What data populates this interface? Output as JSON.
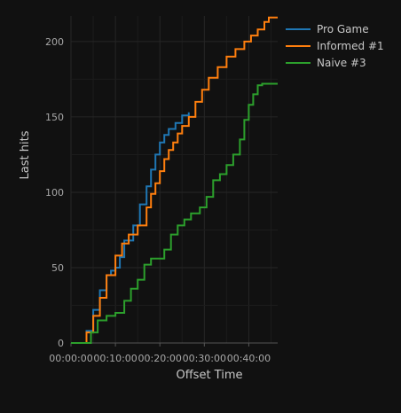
{
  "chart_data": {
    "type": "line",
    "xlabel": "Offset Time",
    "ylabel": "Last hits",
    "x_unit": "minutes",
    "xlim": [
      0,
      46.5
    ],
    "ylim": [
      0,
      217
    ],
    "x_ticks": [
      {
        "value": 0,
        "label": "00:00:00"
      },
      {
        "value": 10,
        "label": "00:10:00"
      },
      {
        "value": 20,
        "label": "00:20:00"
      },
      {
        "value": 30,
        "label": "00:30:00"
      },
      {
        "value": 40,
        "label": "00:40:00"
      }
    ],
    "y_ticks": [
      {
        "value": 0,
        "label": "0"
      },
      {
        "value": 50,
        "label": "50"
      },
      {
        "value": 100,
        "label": "100"
      },
      {
        "value": 150,
        "label": "150"
      },
      {
        "value": 200,
        "label": "200"
      }
    ],
    "grid": true,
    "legend_position": "top-right",
    "series": [
      {
        "name": "Pro Game",
        "color": "#1f77b4",
        "x": [
          0,
          2.2,
          3.5,
          5,
          6.5,
          8,
          9,
          10,
          11,
          12,
          14,
          15.5,
          17,
          18,
          19,
          20,
          21,
          22,
          23.5,
          25,
          26.5
        ],
        "y": [
          0,
          0,
          8,
          22,
          35,
          45,
          48,
          50,
          57,
          68,
          78,
          92,
          104,
          115,
          125,
          133,
          138,
          142,
          146,
          151,
          153
        ]
      },
      {
        "name": "Informed #1",
        "color": "#ff7f0e",
        "x": [
          0,
          2.5,
          3.5,
          5,
          6.5,
          8,
          10,
          11.5,
          13,
          15,
          17,
          18,
          19,
          20,
          21,
          22,
          23,
          24,
          25,
          26.5,
          28,
          29.5,
          31,
          33,
          35,
          37,
          39,
          40.5,
          42,
          43.5,
          44.5,
          46.5
        ],
        "y": [
          0,
          0,
          7,
          18,
          30,
          45,
          58,
          66,
          72,
          78,
          90,
          99,
          106,
          114,
          122,
          128,
          133,
          139,
          144,
          150,
          160,
          168,
          176,
          183,
          190,
          195,
          200,
          204,
          208,
          213,
          216,
          216
        ]
      },
      {
        "name": "Naive #3",
        "color": "#2ca02c",
        "x": [
          0,
          3,
          4.5,
          6,
          8,
          10,
          12,
          13.5,
          15,
          16.5,
          18,
          21,
          22.5,
          24,
          25.5,
          27,
          29,
          30.5,
          32,
          33.5,
          35,
          36.5,
          38,
          39,
          40,
          41,
          42,
          43,
          46.5
        ],
        "y": [
          0,
          0,
          7,
          15,
          18,
          20,
          28,
          36,
          42,
          52,
          56,
          62,
          72,
          78,
          82,
          86,
          90,
          97,
          108,
          112,
          118,
          125,
          135,
          148,
          158,
          165,
          171,
          172,
          172
        ]
      }
    ]
  }
}
